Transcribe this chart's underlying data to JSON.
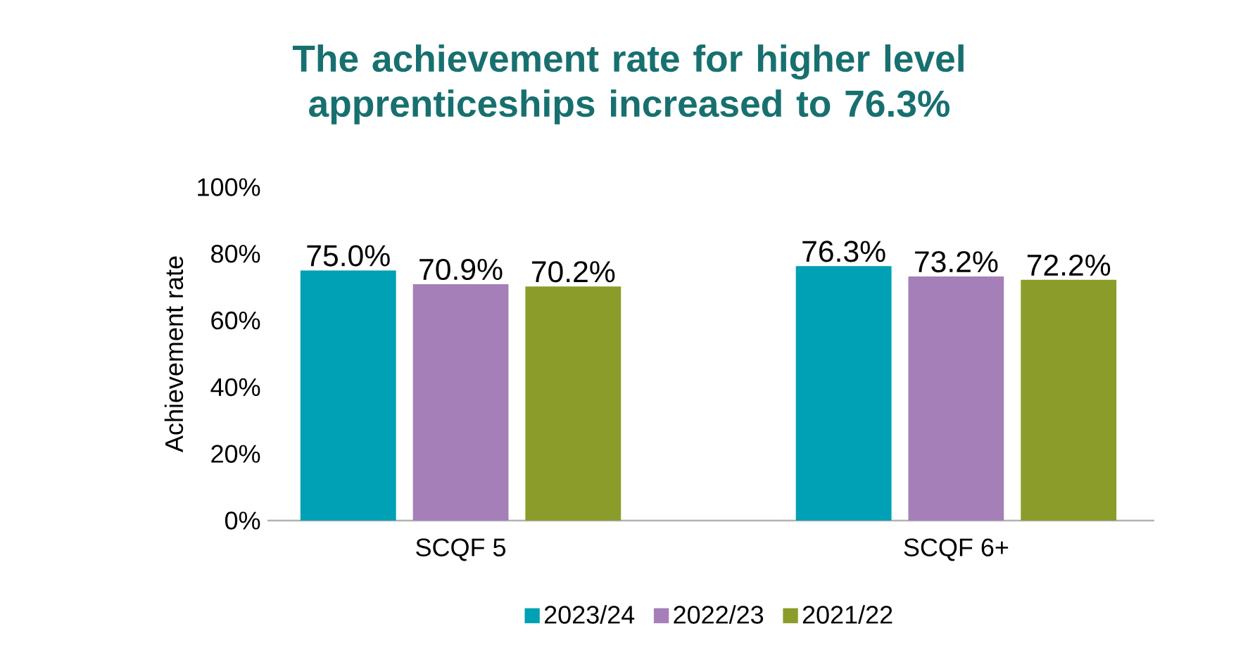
{
  "chart_data": {
    "type": "bar",
    "title": "The achievement rate for higher level apprenticeships increased to 76.3%",
    "ylabel": "Achievement rate",
    "categories": [
      "SCQF 5",
      "SCQF 6+"
    ],
    "series": [
      {
        "name": "2023/24",
        "color": "#00a0b5",
        "values": [
          75.0,
          76.3
        ],
        "value_labels": [
          "75.0%",
          "76.3%"
        ]
      },
      {
        "name": "2022/23",
        "color": "#a57fb8",
        "values": [
          70.9,
          73.2
        ],
        "value_labels": [
          "70.9%",
          "73.2%"
        ]
      },
      {
        "name": "2021/22",
        "color": "#8c9c2a",
        "values": [
          70.2,
          72.2
        ],
        "value_labels": [
          "70.2%",
          "72.2%"
        ]
      }
    ],
    "ylim": [
      0,
      100
    ],
    "yticks": [
      {
        "value": 0,
        "label": "0%"
      },
      {
        "value": 20,
        "label": "20%"
      },
      {
        "value": 40,
        "label": "40%"
      },
      {
        "value": 60,
        "label": "60%"
      },
      {
        "value": 80,
        "label": "80%"
      },
      {
        "value": 100,
        "label": "100%"
      }
    ],
    "legend": "bottom"
  }
}
